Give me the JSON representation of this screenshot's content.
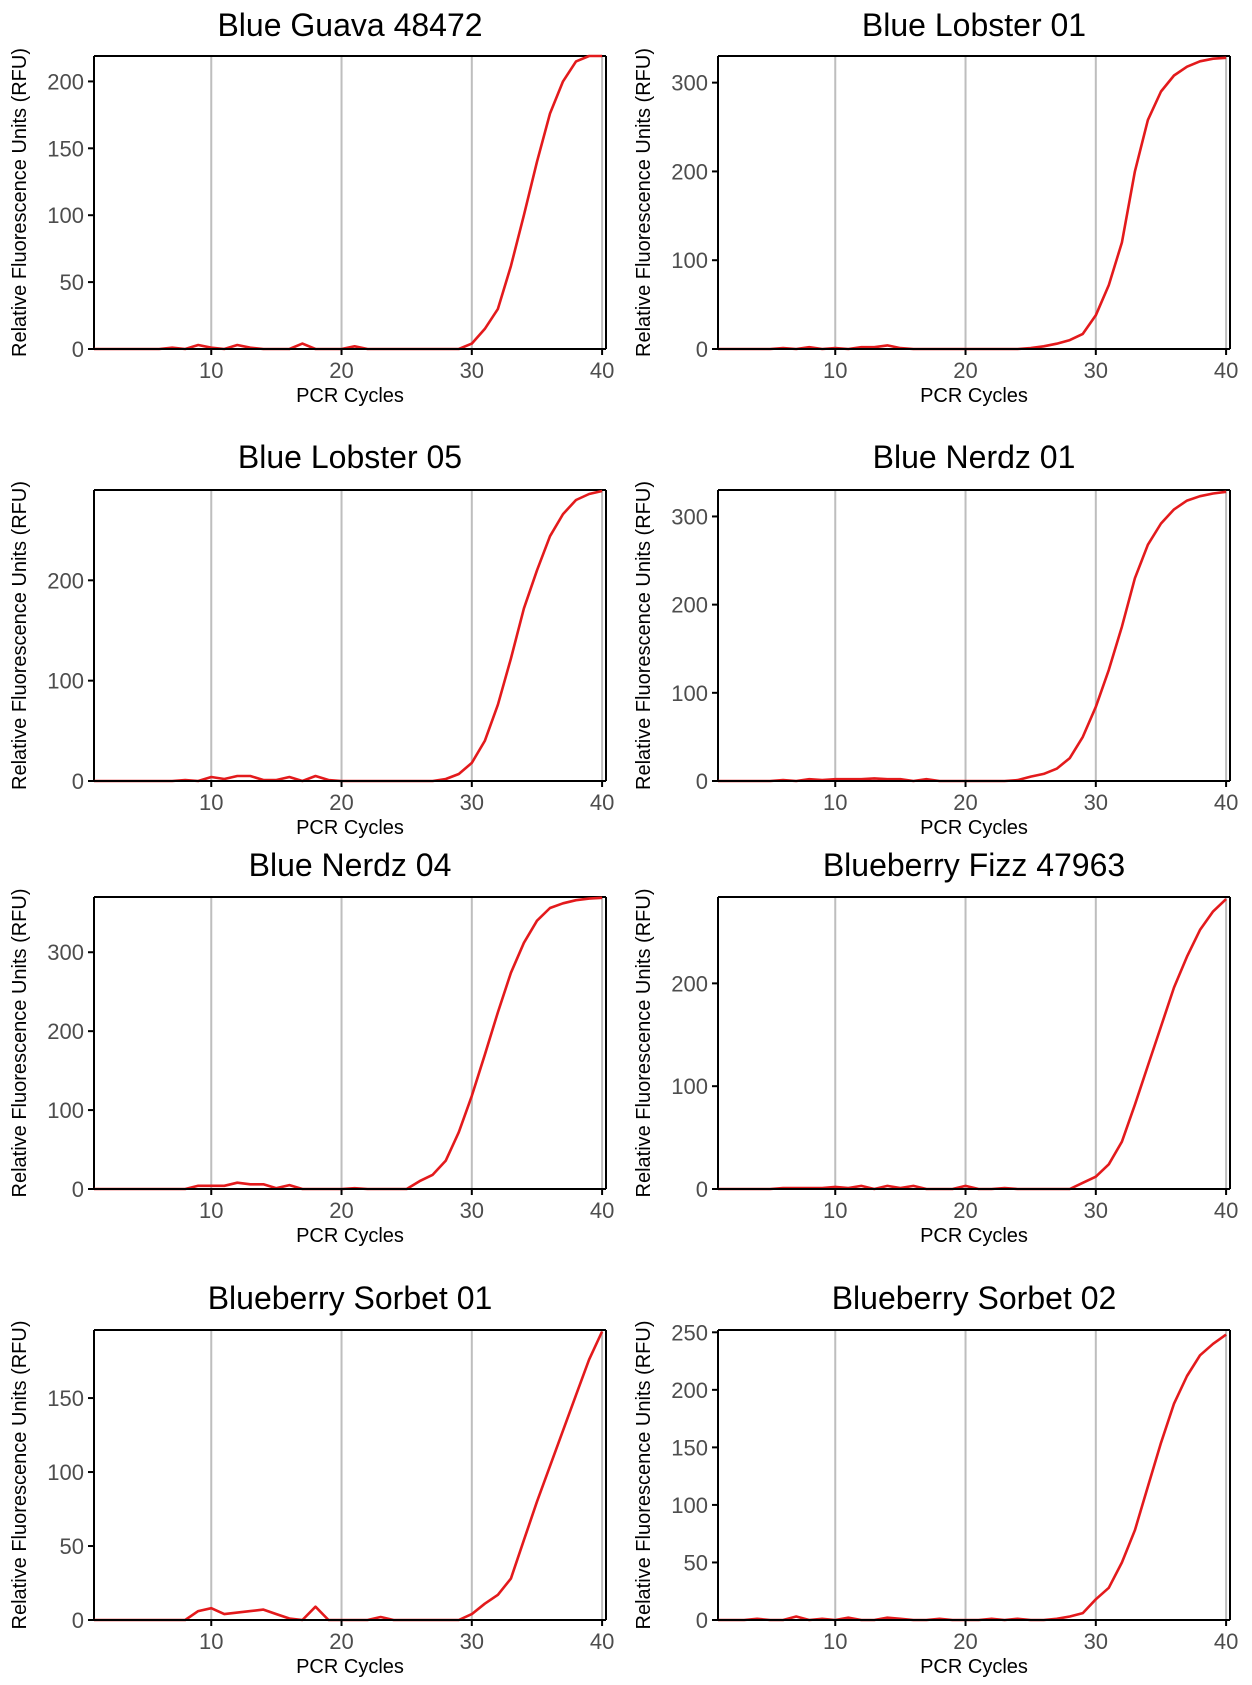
{
  "figure": {
    "xlabel": "PCR Cycles",
    "ylabel": "Relative Fluorescence Units (RFU)",
    "line_color": "#e31a1c",
    "grid_color": "#bebebe",
    "axis_color": "#000000",
    "tick_label_color": "#4d4d4d"
  },
  "chart_data": [
    {
      "type": "line",
      "title": "Blue Guava 48472",
      "xlabel": "PCR Cycles",
      "ylabel": "Relative Fluorescence Units (RFU)",
      "xlim": [
        1,
        40.3
      ],
      "ylim": [
        0,
        219
      ],
      "xticks": [
        10,
        20,
        30,
        40
      ],
      "yticks": [
        0,
        50,
        100,
        150,
        200
      ],
      "grid": "vertical major",
      "x": [
        1,
        2,
        3,
        4,
        5,
        6,
        7,
        8,
        9,
        10,
        11,
        12,
        13,
        14,
        15,
        16,
        17,
        18,
        19,
        20,
        21,
        22,
        23,
        24,
        25,
        26,
        27,
        28,
        29,
        30,
        31,
        32,
        33,
        34,
        35,
        36,
        37,
        38,
        39,
        40
      ],
      "y": [
        0,
        0,
        0,
        0,
        0,
        0,
        1,
        0,
        3,
        1,
        0,
        3,
        1,
        0,
        0,
        0,
        4,
        0,
        0,
        0,
        2,
        0,
        0,
        0,
        0,
        0,
        0,
        0,
        0,
        4,
        15,
        30,
        62,
        100,
        140,
        176,
        200,
        215,
        219,
        219
      ]
    },
    {
      "type": "line",
      "title": "Blue Lobster 01",
      "xlabel": "PCR Cycles",
      "ylabel": "Relative Fluorescence Units (RFU)",
      "xlim": [
        1,
        40.3
      ],
      "ylim": [
        0,
        330
      ],
      "xticks": [
        10,
        20,
        30,
        40
      ],
      "yticks": [
        0,
        100,
        200,
        300
      ],
      "grid": "vertical major",
      "x": [
        1,
        2,
        3,
        4,
        5,
        6,
        7,
        8,
        9,
        10,
        11,
        12,
        13,
        14,
        15,
        16,
        17,
        18,
        19,
        20,
        21,
        22,
        23,
        24,
        25,
        26,
        27,
        28,
        29,
        30,
        31,
        32,
        33,
        34,
        35,
        36,
        37,
        38,
        39,
        40
      ],
      "y": [
        0,
        0,
        0,
        0,
        0,
        1,
        0,
        2,
        0,
        1,
        0,
        2,
        2,
        4,
        1,
        0,
        0,
        0,
        0,
        0,
        0,
        0,
        0,
        0,
        1,
        3,
        6,
        10,
        17,
        38,
        72,
        120,
        200,
        258,
        290,
        308,
        318,
        324,
        327,
        328
      ]
    },
    {
      "type": "line",
      "title": "Blue Lobster 05",
      "xlabel": "PCR Cycles",
      "ylabel": "Relative Fluorescence Units (RFU)",
      "xlim": [
        1,
        40.3
      ],
      "ylim": [
        0,
        290
      ],
      "xticks": [
        10,
        20,
        30,
        40
      ],
      "yticks": [
        0,
        100,
        200
      ],
      "grid": "vertical major",
      "x": [
        1,
        2,
        3,
        4,
        5,
        6,
        7,
        8,
        9,
        10,
        11,
        12,
        13,
        14,
        15,
        16,
        17,
        18,
        19,
        20,
        21,
        22,
        23,
        24,
        25,
        26,
        27,
        28,
        29,
        30,
        31,
        32,
        33,
        34,
        35,
        36,
        37,
        38,
        39,
        40
      ],
      "y": [
        0,
        0,
        0,
        0,
        0,
        0,
        0,
        1,
        0,
        4,
        2,
        5,
        5,
        1,
        1,
        4,
        0,
        5,
        1,
        0,
        0,
        0,
        0,
        0,
        0,
        0,
        0,
        2,
        7,
        18,
        40,
        76,
        122,
        172,
        210,
        244,
        266,
        280,
        286,
        289
      ]
    },
    {
      "type": "line",
      "title": "Blue Nerdz 01",
      "xlabel": "PCR Cycles",
      "ylabel": "Relative Fluorescence Units (RFU)",
      "xlim": [
        1,
        40.3
      ],
      "ylim": [
        0,
        330
      ],
      "xticks": [
        10,
        20,
        30,
        40
      ],
      "yticks": [
        0,
        100,
        200,
        300
      ],
      "grid": "vertical major",
      "x": [
        1,
        2,
        3,
        4,
        5,
        6,
        7,
        8,
        9,
        10,
        11,
        12,
        13,
        14,
        15,
        16,
        17,
        18,
        19,
        20,
        21,
        22,
        23,
        24,
        25,
        26,
        27,
        28,
        29,
        30,
        31,
        32,
        33,
        34,
        35,
        36,
        37,
        38,
        39,
        40
      ],
      "y": [
        0,
        0,
        0,
        0,
        0,
        1,
        0,
        2,
        1,
        2,
        2,
        2,
        3,
        2,
        2,
        0,
        2,
        0,
        0,
        0,
        0,
        0,
        0,
        1,
        5,
        8,
        14,
        26,
        50,
        84,
        126,
        175,
        230,
        268,
        292,
        308,
        318,
        323,
        326,
        328
      ]
    },
    {
      "type": "line",
      "title": "Blue Nerdz 04",
      "xlabel": "PCR Cycles",
      "ylabel": "Relative Fluorescence Units (RFU)",
      "xlim": [
        1,
        40.3
      ],
      "ylim": [
        0,
        370
      ],
      "xticks": [
        10,
        20,
        30,
        40
      ],
      "yticks": [
        0,
        100,
        200,
        300
      ],
      "grid": "vertical major",
      "x": [
        1,
        2,
        3,
        4,
        5,
        6,
        7,
        8,
        9,
        10,
        11,
        12,
        13,
        14,
        15,
        16,
        17,
        18,
        19,
        20,
        21,
        22,
        23,
        24,
        25,
        26,
        27,
        28,
        29,
        30,
        31,
        32,
        33,
        34,
        35,
        36,
        37,
        38,
        39,
        40
      ],
      "y": [
        0,
        0,
        0,
        0,
        0,
        0,
        0,
        0,
        4,
        4,
        4,
        8,
        6,
        6,
        1,
        5,
        0,
        0,
        0,
        0,
        1,
        0,
        0,
        0,
        0,
        10,
        18,
        36,
        72,
        118,
        170,
        224,
        274,
        312,
        340,
        356,
        362,
        366,
        368,
        369
      ]
    },
    {
      "type": "line",
      "title": "Blueberry Fizz 47963",
      "xlabel": "PCR Cycles",
      "ylabel": "Relative Fluorescence Units (RFU)",
      "xlim": [
        1,
        40.3
      ],
      "ylim": [
        0,
        284
      ],
      "xticks": [
        10,
        20,
        30,
        40
      ],
      "yticks": [
        0,
        100,
        200
      ],
      "grid": "vertical major",
      "x": [
        1,
        2,
        3,
        4,
        5,
        6,
        7,
        8,
        9,
        10,
        11,
        12,
        13,
        14,
        15,
        16,
        17,
        18,
        19,
        20,
        21,
        22,
        23,
        24,
        25,
        26,
        27,
        28,
        29,
        30,
        31,
        32,
        33,
        34,
        35,
        36,
        37,
        38,
        39,
        40
      ],
      "y": [
        0,
        0,
        0,
        0,
        0,
        1,
        1,
        1,
        1,
        2,
        1,
        3,
        0,
        3,
        1,
        3,
        0,
        0,
        0,
        3,
        0,
        0,
        1,
        0,
        0,
        0,
        0,
        0,
        6,
        12,
        24,
        46,
        82,
        120,
        158,
        196,
        226,
        252,
        270,
        282
      ]
    },
    {
      "type": "line",
      "title": "Blueberry Sorbet 01",
      "xlabel": "PCR Cycles",
      "ylabel": "Relative Fluorescence Units (RFU)",
      "xlim": [
        1,
        40.3
      ],
      "ylim": [
        0,
        196
      ],
      "xticks": [
        10,
        20,
        30,
        40
      ],
      "yticks": [
        0,
        50,
        100,
        150
      ],
      "grid": "vertical major",
      "x": [
        1,
        2,
        3,
        4,
        5,
        6,
        7,
        8,
        9,
        10,
        11,
        12,
        13,
        14,
        15,
        16,
        17,
        18,
        19,
        20,
        21,
        22,
        23,
        24,
        25,
        26,
        27,
        28,
        29,
        30,
        31,
        32,
        33,
        34,
        35,
        36,
        37,
        38,
        39,
        40
      ],
      "y": [
        0,
        0,
        0,
        0,
        0,
        0,
        0,
        0,
        6,
        8,
        4,
        5,
        6,
        7,
        4,
        1,
        0,
        9,
        0,
        0,
        0,
        0,
        2,
        0,
        0,
        0,
        0,
        0,
        0,
        4,
        11,
        17,
        28,
        54,
        80,
        104,
        128,
        152,
        176,
        195
      ]
    },
    {
      "type": "line",
      "title": "Blueberry Sorbet 02",
      "xlabel": "PCR Cycles",
      "ylabel": "Relative Fluorescence Units (RFU)",
      "xlim": [
        1,
        40.3
      ],
      "ylim": [
        0,
        252
      ],
      "xticks": [
        10,
        20,
        30,
        40
      ],
      "yticks": [
        0,
        50,
        100,
        150,
        200,
        250
      ],
      "grid": "vertical major",
      "x": [
        1,
        2,
        3,
        4,
        5,
        6,
        7,
        8,
        9,
        10,
        11,
        12,
        13,
        14,
        15,
        16,
        17,
        18,
        19,
        20,
        21,
        22,
        23,
        24,
        25,
        26,
        27,
        28,
        29,
        30,
        31,
        32,
        33,
        34,
        35,
        36,
        37,
        38,
        39,
        40
      ],
      "y": [
        0,
        0,
        0,
        1,
        0,
        0,
        3,
        0,
        1,
        0,
        2,
        0,
        0,
        2,
        1,
        0,
        0,
        1,
        0,
        0,
        0,
        1,
        0,
        1,
        0,
        0,
        1,
        3,
        6,
        18,
        28,
        50,
        78,
        116,
        154,
        188,
        212,
        230,
        240,
        248
      ]
    }
  ]
}
